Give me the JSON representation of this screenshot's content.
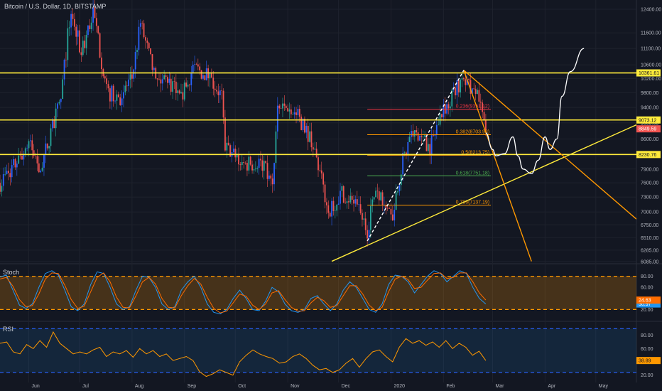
{
  "header": {
    "title": "Bitcoin / U.S. Dollar, 1D, BITSTAMP"
  },
  "colors": {
    "background": "#131722",
    "up": "#26a69a",
    "up_alt": "#2962ff",
    "down": "#ef5350",
    "yellow": "#ffeb3b",
    "orange": "#ff9800",
    "red": "#f23645",
    "green": "#4caf50",
    "white": "#ffffff",
    "stoch_k": "#2196f3",
    "stoch_d": "#ff6d00",
    "rsi": "#ff9800"
  },
  "chart_data": [
    {
      "type": "candlestick",
      "title": "Bitcoin / U.S. Dollar, 1D, BITSTAMP",
      "x_axis": {
        "labels": [
          "Jun",
          "Jul",
          "Aug",
          "Sep",
          "Oct",
          "Nov",
          "Dec",
          "2020",
          "Feb",
          "Mar",
          "Apr",
          "May"
        ],
        "start": "2019-05-15",
        "end": "2020-05-25"
      },
      "y_axis": {
        "scale": "log",
        "ticks": [
          12400,
          11600,
          11100,
          10600,
          10200,
          9800,
          9400,
          9000,
          8600,
          8200,
          7900,
          7600,
          7300,
          7000,
          6750,
          6510,
          6285,
          6085
        ],
        "range": [
          6000,
          12600
        ]
      },
      "price_path": [
        [
          "2019-05-15",
          7600
        ],
        [
          "2019-05-25",
          8050
        ],
        [
          "2019-06-01",
          8500
        ],
        [
          "2019-06-08",
          7900
        ],
        [
          "2019-06-15",
          8900
        ],
        [
          "2019-06-20",
          9600
        ],
        [
          "2019-06-26",
          12400
        ],
        [
          "2019-07-02",
          10900
        ],
        [
          "2019-07-09",
          12300
        ],
        [
          "2019-07-17",
          9800
        ],
        [
          "2019-07-25",
          9700
        ],
        [
          "2019-08-01",
          10200
        ],
        [
          "2019-08-06",
          11900
        ],
        [
          "2019-08-15",
          10100
        ],
        [
          "2019-08-22",
          10200
        ],
        [
          "2019-08-30",
          9600
        ],
        [
          "2019-09-06",
          10500
        ],
        [
          "2019-09-15",
          10300
        ],
        [
          "2019-09-23",
          9700
        ],
        [
          "2019-09-25",
          8400
        ],
        [
          "2019-10-06",
          8000
        ],
        [
          "2019-10-16",
          8100
        ],
        [
          "2019-10-23",
          7500
        ],
        [
          "2019-10-26",
          9350
        ],
        [
          "2019-11-05",
          9300
        ],
        [
          "2019-11-15",
          8600
        ],
        [
          "2019-11-25",
          7000
        ],
        [
          "2019-12-03",
          7400
        ],
        [
          "2019-12-10",
          7200
        ],
        [
          "2019-12-18",
          6650
        ],
        [
          "2019-12-23",
          7500
        ],
        [
          "2020-01-02",
          7000
        ],
        [
          "2020-01-08",
          8100
        ],
        [
          "2020-01-15",
          8800
        ],
        [
          "2020-01-24",
          8400
        ],
        [
          "2020-02-01",
          9400
        ],
        [
          "2020-02-08",
          9800
        ],
        [
          "2020-02-13",
          10380
        ],
        [
          "2020-02-18",
          9700
        ],
        [
          "2020-02-21",
          9800
        ],
        [
          "2020-02-26",
          8750
        ]
      ],
      "horizontal_lines": [
        {
          "price": 10361.61,
          "label": "10361.61",
          "color": "#ffeb3b"
        },
        {
          "price": 9073.12,
          "label": "9073.12",
          "color": "#ffeb3b"
        },
        {
          "price": 8230.76,
          "label": "8230.76",
          "color": "#ffeb3b"
        }
      ],
      "current_price": {
        "price": 8849.59,
        "label": "8849.59",
        "color": "#ef5350"
      },
      "fibonacci": {
        "start": "2019-12-18",
        "end": "2020-02-29",
        "levels": [
          {
            "ratio": "0.236",
            "price": 9351.12,
            "label": "0.236(9351.12)",
            "color": "#f23645"
          },
          {
            "ratio": "0.382",
            "price": 8703.93,
            "label": "0.382(8703.93)",
            "color": "#ff9800"
          },
          {
            "ratio": "0.5",
            "price": 8213.75,
            "label": "0.5(8213.75)",
            "color": "#ff9800"
          },
          {
            "ratio": "0.618",
            "price": 7751.18,
            "label": "0.618(7751.18)",
            "color": "#4caf50"
          },
          {
            "ratio": "0.786",
            "price": 7137.19,
            "label": "0.786(7137.19)",
            "color": "#ff9800"
          }
        ]
      },
      "trendlines": [
        {
          "from": [
            "2019-11-27",
            6090
          ],
          "to": [
            "2020-05-25",
            8950
          ],
          "color": "#ffeb3b"
        },
        {
          "from": [
            "2020-02-13",
            10440
          ],
          "to": [
            "2020-05-25",
            6860
          ],
          "color": "#ff9800"
        },
        {
          "from": [
            "2020-02-13",
            10440
          ],
          "to": [
            "2020-03-24",
            6090
          ],
          "color": "#ff9800"
        },
        {
          "from": [
            "2019-12-18",
            6450
          ],
          "to": [
            "2020-02-13",
            10440
          ],
          "color": "#ffffff",
          "dashed": true
        }
      ],
      "projection_path": [
        [
          "2020-02-26",
          8750
        ],
        [
          "2020-03-01",
          8350
        ],
        [
          "2020-03-03",
          8200
        ],
        [
          "2020-03-08",
          8250
        ],
        [
          "2020-03-13",
          8650
        ],
        [
          "2020-03-16",
          8200
        ],
        [
          "2020-03-19",
          7900
        ],
        [
          "2020-03-24",
          7800
        ],
        [
          "2020-03-28",
          8100
        ],
        [
          "2020-04-01",
          8650
        ],
        [
          "2020-04-04",
          8350
        ],
        [
          "2020-04-08",
          8600
        ],
        [
          "2020-04-11",
          9700
        ],
        [
          "2020-04-16",
          10400
        ],
        [
          "2020-04-24",
          11100
        ]
      ]
    },
    {
      "type": "line",
      "title": "Stoch",
      "y_axis": {
        "ticks": [
          80,
          60,
          40,
          20
        ],
        "range": [
          0,
          100
        ]
      },
      "bands": {
        "upper": 80,
        "lower": 20
      },
      "series": [
        {
          "name": "K",
          "label": "30.97",
          "color": "#2196f3",
          "values": [
            79,
            82,
            55,
            28,
            22,
            30,
            60,
            85,
            90,
            82,
            55,
            25,
            18,
            30,
            65,
            88,
            85,
            60,
            30,
            20,
            25,
            55,
            80,
            78,
            60,
            30,
            20,
            25,
            55,
            70,
            80,
            60,
            30,
            15,
            12,
            20,
            40,
            55,
            40,
            20,
            18,
            35,
            60,
            52,
            30,
            18,
            15,
            20,
            40,
            45,
            30,
            18,
            30,
            55,
            70,
            60,
            40,
            20,
            15,
            30,
            65,
            82,
            80,
            70,
            50,
            65,
            80,
            90,
            85,
            70,
            80,
            90,
            85,
            60,
            40,
            30
          ]
        },
        {
          "name": "D",
          "label": "24.63",
          "color": "#ff6d00",
          "values": [
            75,
            78,
            62,
            38,
            25,
            27,
            48,
            75,
            86,
            85,
            64,
            38,
            22,
            26,
            52,
            78,
            86,
            70,
            42,
            24,
            23,
            45,
            70,
            78,
            66,
            40,
            24,
            23,
            45,
            63,
            76,
            66,
            42,
            22,
            14,
            17,
            32,
            48,
            44,
            28,
            20,
            30,
            50,
            54,
            38,
            24,
            17,
            18,
            32,
            42,
            36,
            24,
            27,
            45,
            63,
            63,
            48,
            28,
            18,
            24,
            52,
            75,
            80,
            74,
            58,
            60,
            73,
            85,
            86,
            76,
            78,
            86,
            86,
            70,
            50,
            37
          ]
        }
      ]
    },
    {
      "type": "line",
      "title": "RSI",
      "y_axis": {
        "ticks": [
          80,
          60,
          40,
          20
        ],
        "range": [
          10,
          100
        ]
      },
      "bands": {
        "upper": 90,
        "lower": 24
      },
      "series": [
        {
          "name": "RSI",
          "label": "38.89",
          "color": "#ff9800",
          "values": [
            68,
            70,
            55,
            52,
            66,
            60,
            72,
            62,
            85,
            68,
            60,
            52,
            55,
            52,
            58,
            62,
            48,
            55,
            52,
            57,
            47,
            60,
            52,
            57,
            48,
            52,
            42,
            45,
            48,
            42,
            25,
            18,
            22,
            28,
            24,
            20,
            40,
            50,
            58,
            52,
            48,
            45,
            38,
            40,
            48,
            52,
            45,
            35,
            28,
            30,
            24,
            28,
            38,
            45,
            32,
            45,
            55,
            58,
            48,
            40,
            62,
            75,
            68,
            72,
            65,
            70,
            62,
            72,
            60,
            68,
            62,
            50,
            56,
            42
          ]
        }
      ]
    }
  ]
}
